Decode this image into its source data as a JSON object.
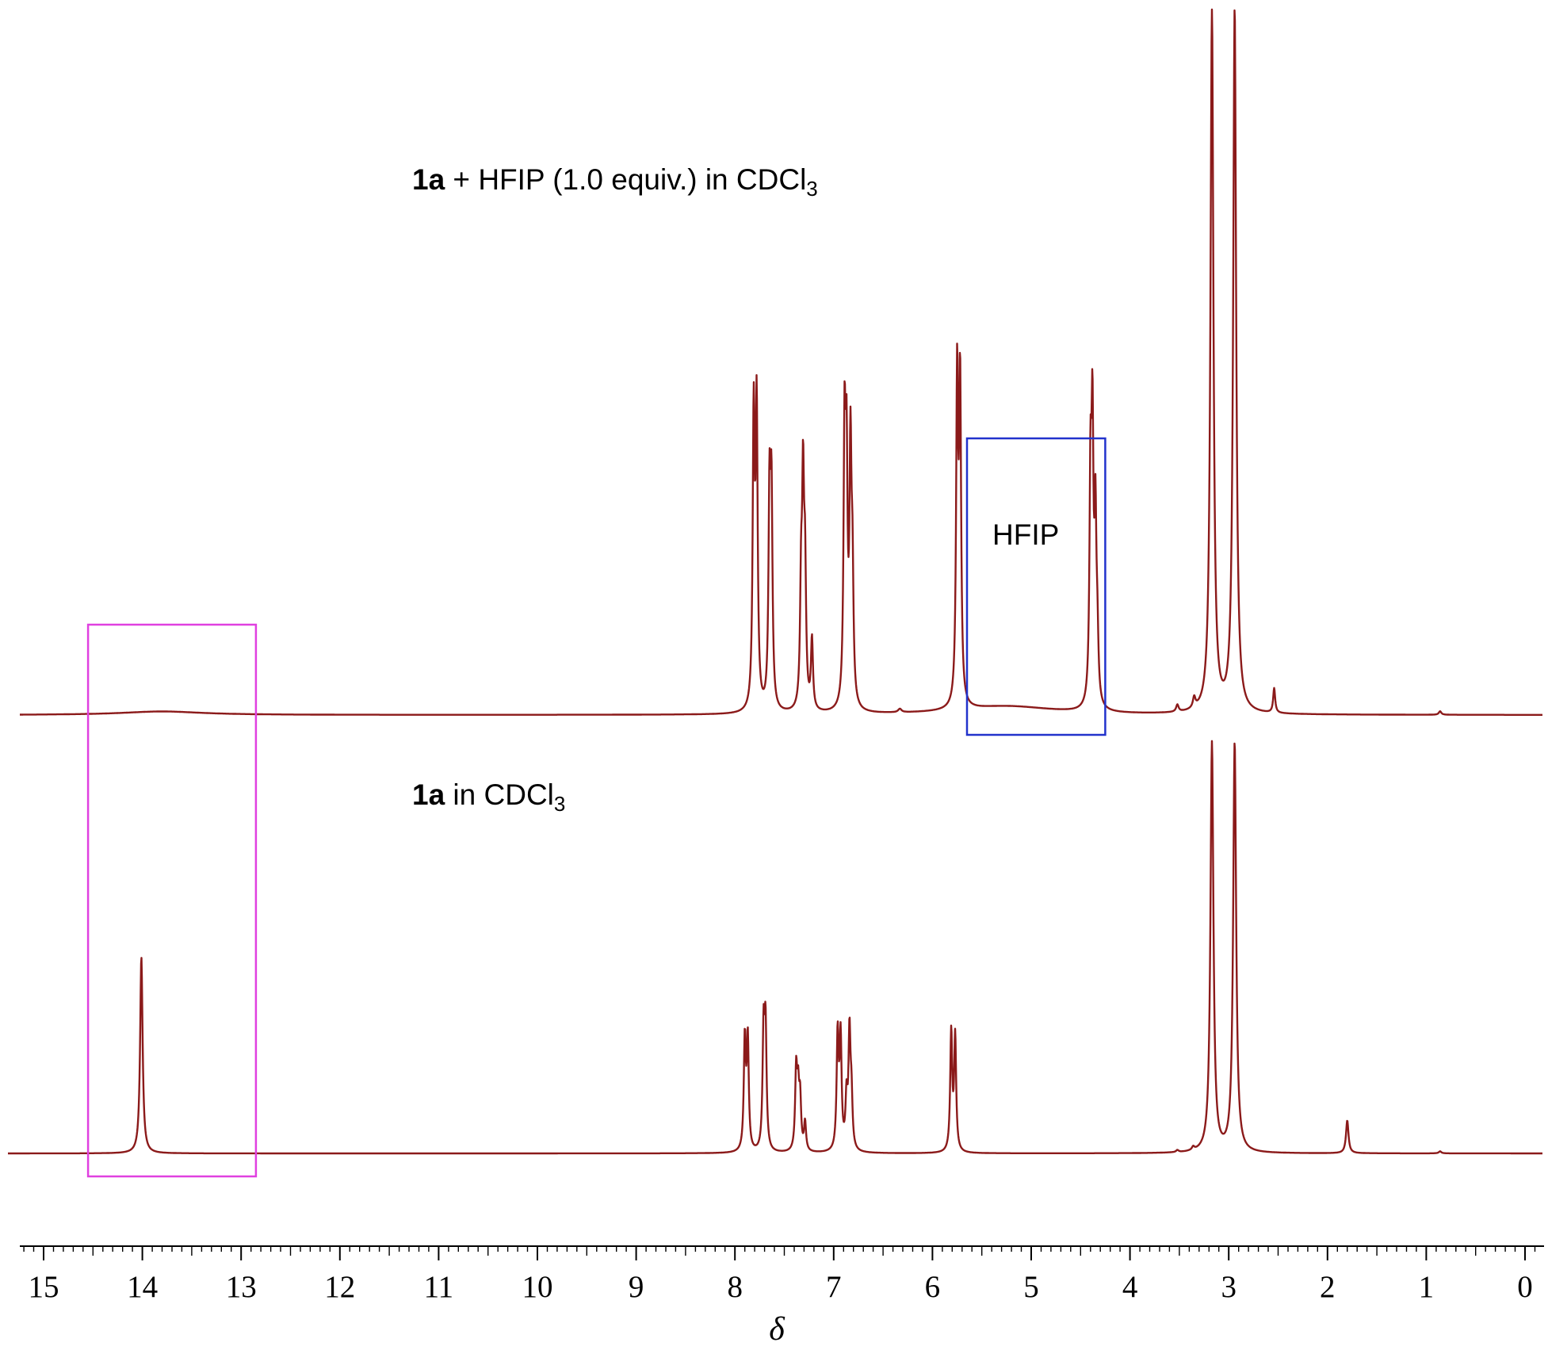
{
  "chart_data": {
    "type": "line",
    "title": "",
    "xlabel": "δ",
    "ylabel": "",
    "xlim": [
      15.3,
      -0.3
    ],
    "x_reversed": true,
    "x_ticks": [
      "15",
      "14",
      "13",
      "12",
      "11",
      "10",
      "9",
      "8",
      "7",
      "6",
      "5",
      "4",
      "3",
      "2",
      "1",
      "0"
    ],
    "y_axis_shown": false,
    "grid": false,
    "colors": {
      "trace": "#8b1a1a",
      "box_magenta": "#e040e0",
      "box_blue": "#2233cc"
    },
    "series": [
      {
        "compound": "1a",
        "label_rest": " + HFIP (1.0 equiv.) in CDCl",
        "label_sub": "3",
        "peaks": [
          {
            "delta": 13.8,
            "height": 0.005,
            "width": 0.5
          },
          {
            "delta": 7.81,
            "height": 0.41,
            "width": 0.012
          },
          {
            "delta": 7.78,
            "height": 0.42,
            "width": 0.012
          },
          {
            "delta": 7.65,
            "height": 0.29,
            "width": 0.012
          },
          {
            "delta": 7.63,
            "height": 0.29,
            "width": 0.012
          },
          {
            "delta": 7.33,
            "height": 0.16,
            "width": 0.012
          },
          {
            "delta": 7.31,
            "height": 0.3,
            "width": 0.012
          },
          {
            "delta": 7.29,
            "height": 0.18,
            "width": 0.012
          },
          {
            "delta": 7.22,
            "height": 0.1,
            "width": 0.012
          },
          {
            "delta": 6.89,
            "height": 0.37,
            "width": 0.012
          },
          {
            "delta": 6.87,
            "height": 0.32,
            "width": 0.012
          },
          {
            "delta": 6.83,
            "height": 0.35,
            "width": 0.012
          },
          {
            "delta": 6.81,
            "height": 0.17,
            "width": 0.012
          },
          {
            "delta": 6.33,
            "height": 0.005,
            "width": 0.02
          },
          {
            "delta": 5.75,
            "height": 0.46,
            "width": 0.012
          },
          {
            "delta": 5.72,
            "height": 0.45,
            "width": 0.012
          },
          {
            "delta": 5.25,
            "height": 0.012,
            "width": 0.6
          },
          {
            "delta": 4.4,
            "height": 0.3,
            "width": 0.012
          },
          {
            "delta": 4.38,
            "height": 0.37,
            "width": 0.012
          },
          {
            "delta": 4.35,
            "height": 0.25,
            "width": 0.012
          },
          {
            "delta": 4.33,
            "height": 0.08,
            "width": 0.012
          },
          {
            "delta": 3.52,
            "height": 0.01,
            "width": 0.015
          },
          {
            "delta": 3.35,
            "height": 0.015,
            "width": 0.015
          },
          {
            "delta": 3.17,
            "height": 1.0,
            "width": 0.018
          },
          {
            "delta": 2.94,
            "height": 1.0,
            "width": 0.018
          },
          {
            "delta": 2.54,
            "height": 0.035,
            "width": 0.012
          },
          {
            "delta": 0.86,
            "height": 0.005,
            "width": 0.015
          }
        ]
      },
      {
        "compound": "1a",
        "label_rest": " in CDCl",
        "label_sub": "3",
        "peaks": [
          {
            "delta": 14.01,
            "height": 0.48,
            "width": 0.015
          },
          {
            "delta": 7.9,
            "height": 0.27,
            "width": 0.012
          },
          {
            "delta": 7.87,
            "height": 0.27,
            "width": 0.012
          },
          {
            "delta": 7.71,
            "height": 0.28,
            "width": 0.012
          },
          {
            "delta": 7.69,
            "height": 0.29,
            "width": 0.012
          },
          {
            "delta": 7.38,
            "height": 0.19,
            "width": 0.012
          },
          {
            "delta": 7.36,
            "height": 0.13,
            "width": 0.012
          },
          {
            "delta": 7.34,
            "height": 0.12,
            "width": 0.012
          },
          {
            "delta": 7.29,
            "height": 0.07,
            "width": 0.012
          },
          {
            "delta": 6.96,
            "height": 0.28,
            "width": 0.012
          },
          {
            "delta": 6.93,
            "height": 0.27,
            "width": 0.012
          },
          {
            "delta": 6.87,
            "height": 0.12,
            "width": 0.012
          },
          {
            "delta": 6.84,
            "height": 0.28,
            "width": 0.012
          },
          {
            "delta": 6.82,
            "height": 0.12,
            "width": 0.012
          },
          {
            "delta": 5.81,
            "height": 0.29,
            "width": 0.012
          },
          {
            "delta": 5.77,
            "height": 0.28,
            "width": 0.012
          },
          {
            "delta": 3.52,
            "height": 0.005,
            "width": 0.015
          },
          {
            "delta": 3.36,
            "height": 0.008,
            "width": 0.015
          },
          {
            "delta": 3.17,
            "height": 1.0,
            "width": 0.018
          },
          {
            "delta": 2.94,
            "height": 1.0,
            "width": 0.018
          },
          {
            "delta": 1.8,
            "height": 0.08,
            "width": 0.015
          },
          {
            "delta": 0.86,
            "height": 0.005,
            "width": 0.015
          }
        ]
      }
    ],
    "annotations": [
      {
        "text": "HFIP",
        "type": "box",
        "delta_range": [
          5.65,
          4.25
        ],
        "trace": "1a + HFIP (1.0 equiv.) in CDCl3"
      },
      {
        "text": "",
        "type": "box",
        "delta_range": [
          14.55,
          12.85
        ],
        "trace": "both"
      }
    ]
  }
}
